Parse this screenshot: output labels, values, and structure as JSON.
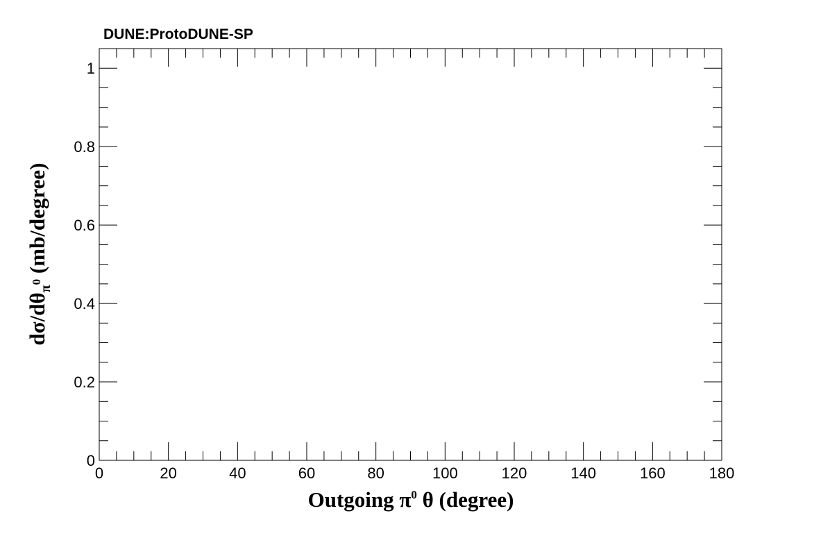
{
  "chart_data": {
    "type": "line",
    "title": "DUNE:ProtoDUNE-SP",
    "xlabel": {
      "prefix": "Outgoing  π",
      "sup": "0",
      "suffix": "  θ (degree)"
    },
    "ylabel": {
      "prefix": "dσ/dθ",
      "sub": "π",
      "subsup": "0",
      "suffix": " (mb/degree)"
    },
    "xlim": [
      0,
      180
    ],
    "ylim": [
      0,
      1.05
    ],
    "xticks": [
      0,
      20,
      40,
      60,
      80,
      100,
      120,
      140,
      160,
      180
    ],
    "xtick_labels": [
      "0",
      "20",
      "40",
      "60",
      "80",
      "100",
      "120",
      "140",
      "160",
      "180"
    ],
    "xminor_step": 5,
    "yticks": [
      0,
      0.2,
      0.4,
      0.6,
      0.8,
      1
    ],
    "ytick_labels": [
      "0",
      "0.2",
      "0.4",
      "0.6",
      "0.8",
      "1"
    ],
    "yminor_step": 0.05,
    "grid": false,
    "series": []
  }
}
